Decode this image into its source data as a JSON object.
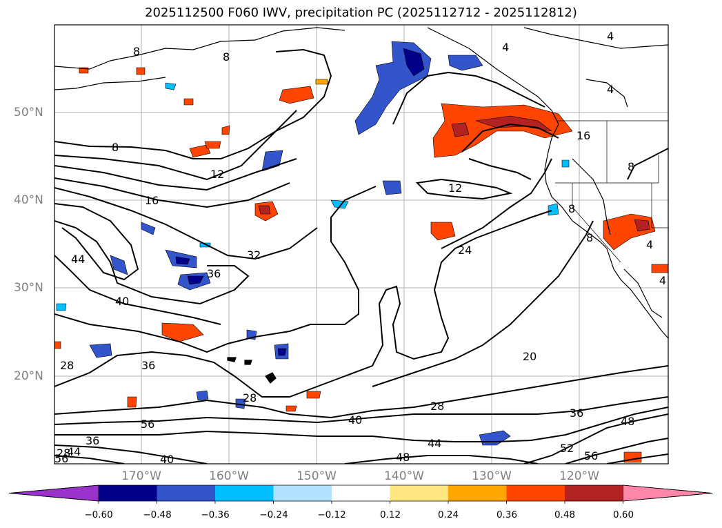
{
  "title": "2025112500 F060 IWV, precipitation PC (2025112712 - 2025112812)",
  "lat_labels": [
    "50°N",
    "40°N",
    "30°N",
    "20°N"
  ],
  "lon_labels": [
    "170°W",
    "160°W",
    "150°W",
    "140°W",
    "130°W",
    "120°W"
  ],
  "colorbar": {
    "ticks": [
      "−0.60",
      "−0.48",
      "−0.36",
      "−0.24",
      "−0.12",
      "0.12",
      "0.24",
      "0.36",
      "0.48",
      "0.60"
    ],
    "colors": [
      "#9933cc",
      "#00008b",
      "#3355cc",
      "#00bfff",
      "#b0e2ff",
      "#ffffff",
      "#ffe680",
      "#ffa500",
      "#ff4500",
      "#b22222",
      "#ff88aa"
    ]
  },
  "contour_labels": [
    "4",
    "4",
    "4",
    "4",
    "4",
    "8",
    "8",
    "8",
    "8",
    "8",
    "8",
    "12",
    "12",
    "16",
    "16",
    "20",
    "24",
    "28",
    "28",
    "28",
    "28",
    "32",
    "36",
    "36",
    "36",
    "36",
    "40",
    "40",
    "40",
    "44",
    "44",
    "44",
    "48",
    "48",
    "52",
    "56",
    "56",
    "56"
  ]
}
